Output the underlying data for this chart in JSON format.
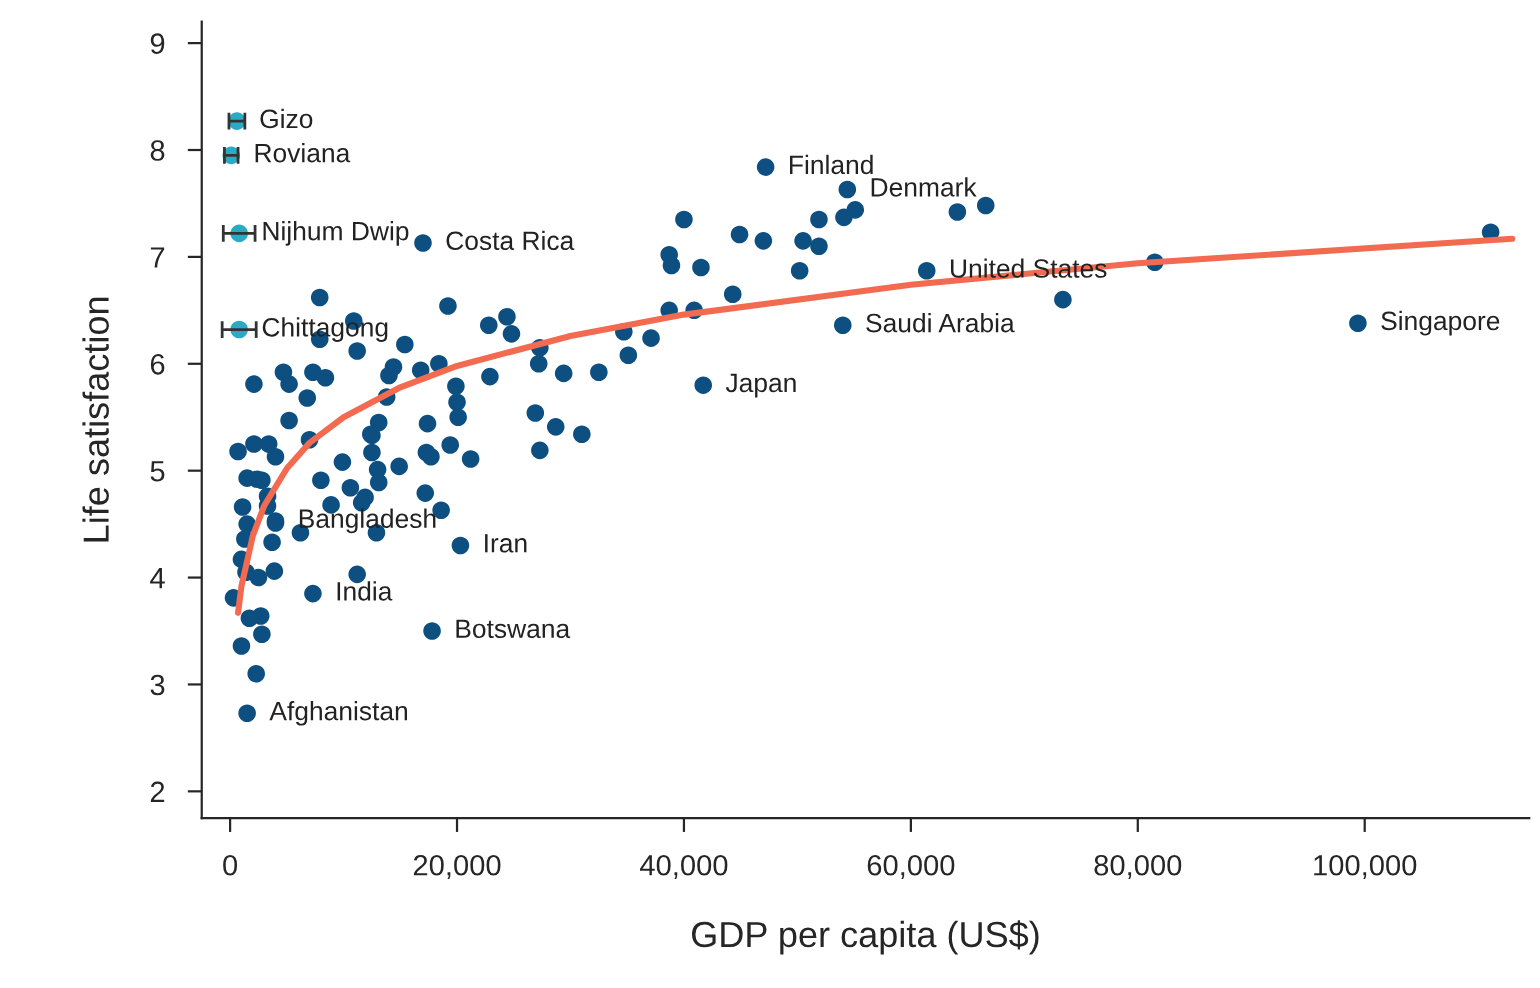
{
  "chart_data": {
    "type": "scatter",
    "xlabel": "GDP per capita (US$)",
    "ylabel": "Life satisfaction",
    "xlim": [
      -2500,
      114500
    ],
    "ylim": [
      1.75,
      9.2
    ],
    "xticks": [
      {
        "value": 0,
        "label": "0"
      },
      {
        "value": 20000,
        "label": "20,000"
      },
      {
        "value": 40000,
        "label": "40,000"
      },
      {
        "value": 60000,
        "label": "60,000"
      },
      {
        "value": 80000,
        "label": "80,000"
      },
      {
        "value": 100000,
        "label": "100,000"
      }
    ],
    "yticks": [
      2,
      3,
      4,
      5,
      6,
      7,
      8,
      9
    ],
    "grid": false,
    "legend": false,
    "marker": "circle",
    "series": [
      {
        "color": "#0d4f80",
        "x": [
          17000,
          47200,
          54400,
          61400,
          54000,
          41700,
          99400,
          20300,
          4000,
          7300,
          17800,
          1500,
          7900,
          10900,
          7900,
          11200,
          19200,
          22800,
          24400,
          24800,
          27300,
          27200,
          29400,
          15400,
          14400,
          14000,
          16800,
          18400,
          19900,
          20000,
          20100,
          22900,
          13800,
          13100,
          12400,
          4700,
          5200,
          7300,
          8400,
          2100,
          6800,
          5200,
          7000,
          2100,
          3400,
          4000,
          700,
          1500,
          2400,
          2800,
          3300,
          3300,
          1100,
          1500,
          1300,
          4000,
          3700,
          1000,
          2500,
          1400,
          3900,
          300,
          1700,
          2700,
          2800,
          1000,
          2300,
          8000,
          9900,
          8900,
          10600,
          6200,
          11200,
          11600,
          11900,
          12900,
          12500,
          12500,
          13000,
          13100,
          14900,
          17400,
          17300,
          17700,
          17200,
          18600,
          19400,
          21200,
          32500,
          26900,
          28700,
          31000,
          27300,
          34700,
          35100,
          37100,
          38700,
          40900,
          44300,
          38700,
          38900,
          40000,
          41500,
          44900,
          47000,
          50200,
          50500,
          51900,
          51900,
          54100,
          55100,
          64100,
          66600,
          73400,
          81500,
          111100
        ],
        "values": [
          7.13,
          7.84,
          7.63,
          6.87,
          6.36,
          5.8,
          6.38,
          4.3,
          4.53,
          3.85,
          3.5,
          2.73,
          6.62,
          6.4,
          6.23,
          6.12,
          6.54,
          6.36,
          6.44,
          6.28,
          6.15,
          6.0,
          5.91,
          6.18,
          5.97,
          5.89,
          5.94,
          6.0,
          5.79,
          5.64,
          5.5,
          5.88,
          5.69,
          5.45,
          5.34,
          5.92,
          5.81,
          5.92,
          5.87,
          5.81,
          5.68,
          5.47,
          5.29,
          5.25,
          5.25,
          5.13,
          5.18,
          4.93,
          4.92,
          4.91,
          4.76,
          4.67,
          4.66,
          4.5,
          4.36,
          4.51,
          4.33,
          4.17,
          4.0,
          4.05,
          4.06,
          3.81,
          3.62,
          3.64,
          3.47,
          3.36,
          3.1,
          4.91,
          5.08,
          4.68,
          4.84,
          4.42,
          4.03,
          4.7,
          4.75,
          4.42,
          5.33,
          5.17,
          5.01,
          4.89,
          5.04,
          5.44,
          5.17,
          5.13,
          4.79,
          4.63,
          5.24,
          5.11,
          5.92,
          5.54,
          5.41,
          5.34,
          5.19,
          6.3,
          6.08,
          6.24,
          6.5,
          6.5,
          6.65,
          7.02,
          6.92,
          7.35,
          6.9,
          7.21,
          7.15,
          6.87,
          7.15,
          7.1,
          7.35,
          7.37,
          7.44,
          7.42,
          7.48,
          6.6,
          6.95,
          7.23
        ]
      },
      {
        "color": "#2aaac4",
        "x": [
          600,
          100,
          800,
          800
        ],
        "values": [
          8.27,
          7.95,
          7.22,
          6.32
        ],
        "xerrors": [
          700,
          600,
          1400,
          1500
        ]
      },
      {
        "type": "line",
        "marker": "none",
        "color": "#f26b50",
        "x": [
          700,
          1000,
          2000,
          3000,
          5000,
          7000,
          10000,
          15000,
          20000,
          30000,
          40000,
          60000,
          80000,
          113000
        ],
        "values": [
          3.67,
          3.92,
          4.39,
          4.67,
          5.02,
          5.26,
          5.5,
          5.78,
          5.98,
          6.26,
          6.46,
          6.74,
          6.94,
          7.17
        ]
      }
    ],
    "annotations": [
      {
        "text": "Gizo",
        "x": 600,
        "y": 8.27
      },
      {
        "text": "Roviana",
        "x": 100,
        "y": 7.95
      },
      {
        "text": "Nijhum Dwip",
        "x": 800,
        "y": 7.22
      },
      {
        "text": "Chittagong",
        "x": 800,
        "y": 6.32
      },
      {
        "text": "Costa Rica",
        "x": 17000,
        "y": 7.13
      },
      {
        "text": "Finland",
        "x": 47200,
        "y": 7.84
      },
      {
        "text": "Denmark",
        "x": 54400,
        "y": 7.63
      },
      {
        "text": "United States",
        "x": 61400,
        "y": 6.87
      },
      {
        "text": "Saudi Arabia",
        "x": 54000,
        "y": 6.36
      },
      {
        "text": "Japan",
        "x": 41700,
        "y": 5.8
      },
      {
        "text": "Singapore",
        "x": 99400,
        "y": 6.38
      },
      {
        "text": "Iran",
        "x": 20300,
        "y": 4.3
      },
      {
        "text": "Bangladesh",
        "x": 4000,
        "y": 4.53
      },
      {
        "text": "India",
        "x": 7300,
        "y": 3.85
      },
      {
        "text": "Botswana",
        "x": 17800,
        "y": 3.5
      },
      {
        "text": "Afghanistan",
        "x": 1500,
        "y": 2.73
      }
    ]
  }
}
